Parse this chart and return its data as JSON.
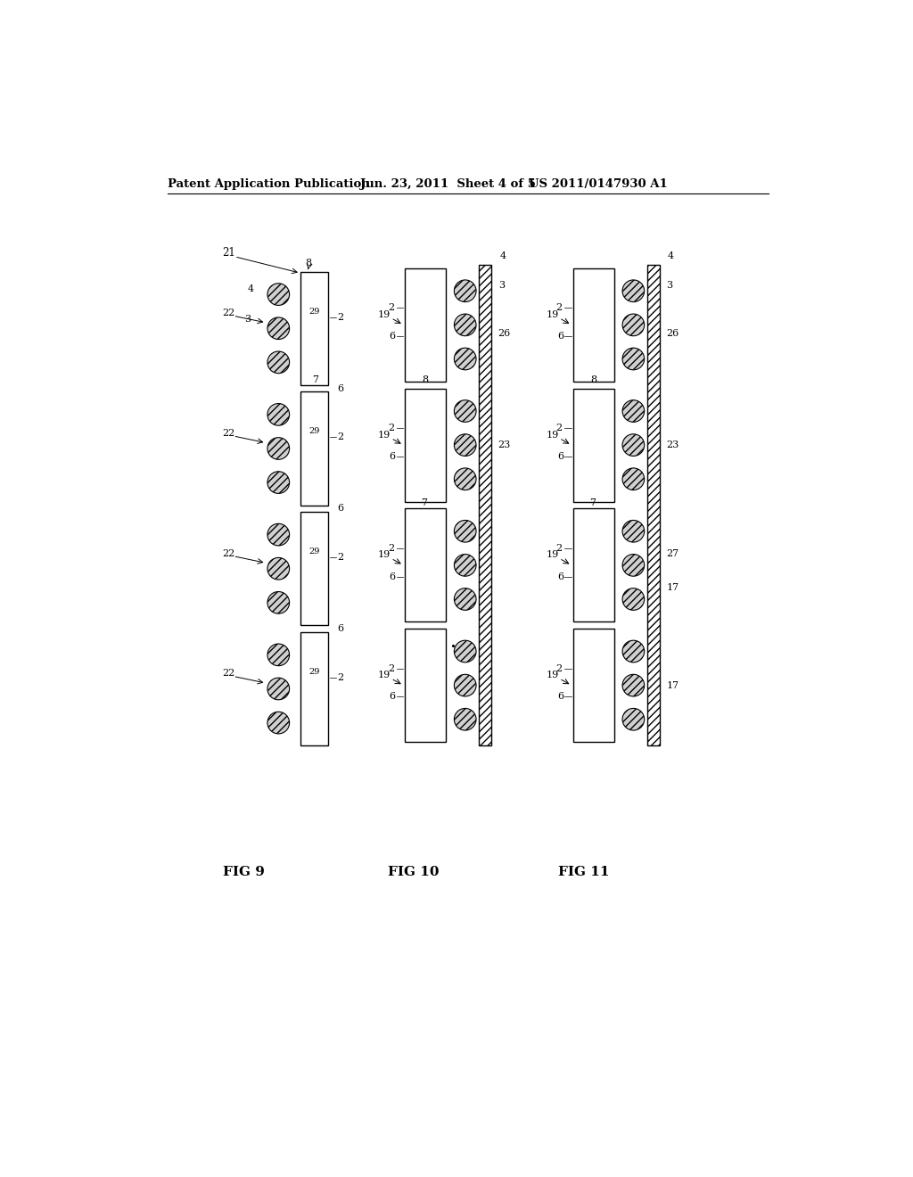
{
  "bg_color": "#ffffff",
  "header_text": "Patent Application Publication",
  "header_date": "Jun. 23, 2011  Sheet 4 of 5",
  "header_patent": "US 2011/0147930 A1",
  "fig9_label": "FIG 9",
  "fig10_label": "FIG 10",
  "fig11_label": "FIG 11"
}
